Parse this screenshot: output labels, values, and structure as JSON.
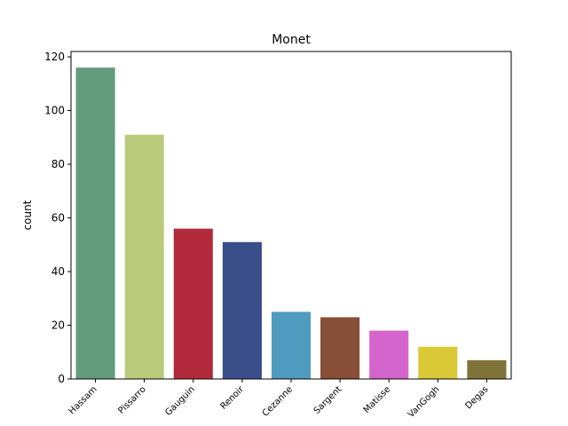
{
  "chart_data": {
    "type": "bar",
    "title": "Monet",
    "xlabel": "",
    "ylabel": "count",
    "categories": [
      "Hassam",
      "Pissarro",
      "Gauguin",
      "Renoir",
      "Cezanne",
      "Sargent",
      "Matisse",
      "VanGogh",
      "Degas"
    ],
    "values": [
      116,
      91,
      56,
      51,
      25,
      23,
      18,
      12,
      7
    ],
    "colors": [
      "#629c7c",
      "#bacc7c",
      "#b22a3c",
      "#3a4e8a",
      "#4f9bbf",
      "#874f37",
      "#d465cc",
      "#d9c937",
      "#80733a"
    ],
    "ylim": [
      0,
      122
    ],
    "yticks": [
      0,
      20,
      40,
      60,
      80,
      100,
      120
    ],
    "grid": false,
    "legend": "none"
  }
}
